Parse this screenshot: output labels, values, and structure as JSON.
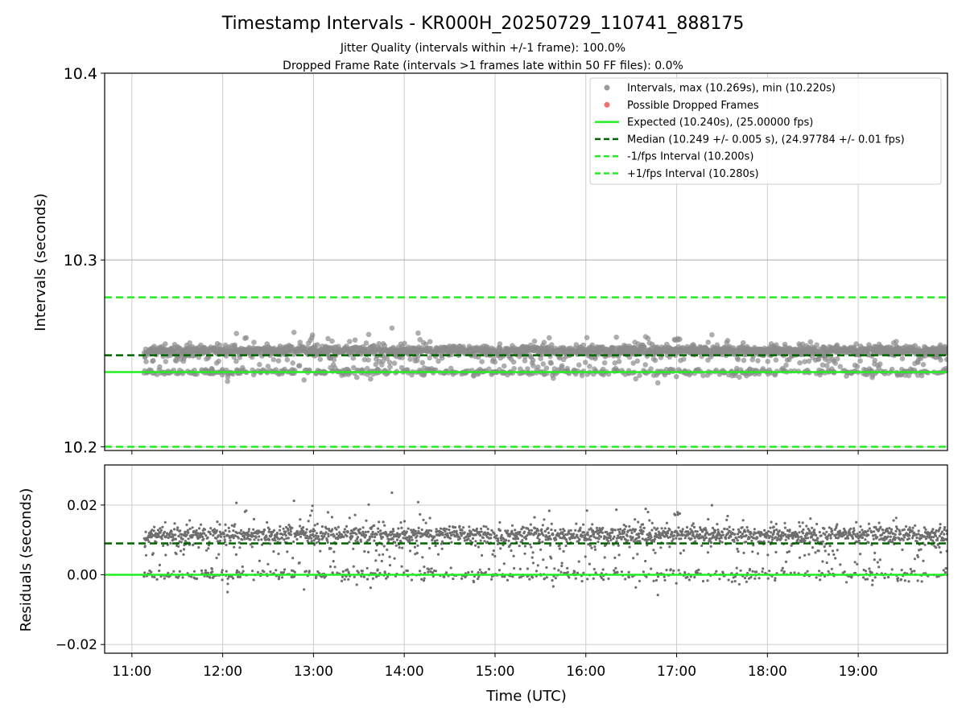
{
  "chart_data": {
    "type": "scatter",
    "title": "Timestamp Intervals - KR000H_20250729_110741_888175",
    "subtitle_lines": [
      "Jitter Quality (intervals within +/-1 frame): 100.0%",
      "Dropped Frame Rate (intervals >1 frames late within 50 FF files): 0.0%"
    ],
    "xlabel": "Time (UTC)",
    "x_ticks": [
      "11:00",
      "12:00",
      "13:00",
      "14:00",
      "15:00",
      "16:00",
      "17:00",
      "18:00",
      "19:00"
    ],
    "x_range": [
      "10:42",
      "19:59"
    ],
    "data_start": "11:08",
    "data_end": "19:59",
    "grid": true,
    "legend_position": "top-right",
    "top_panel": {
      "ylabel": "Intervals (seconds)",
      "ylim": [
        10.198,
        10.4
      ],
      "y_ticks": [
        "10.2",
        "10.3",
        "10.4"
      ],
      "y_tick_values": [
        10.2,
        10.3,
        10.4
      ],
      "interval_max": 10.269,
      "interval_min": 10.22,
      "expected": 10.24,
      "median": 10.249,
      "lower_interval": 10.2,
      "upper_interval": 10.28,
      "dropped_frame_count": 0
    },
    "bottom_panel": {
      "ylabel": "Residuals (seconds)",
      "ylim": [
        -0.0225,
        0.0315
      ],
      "y_ticks": [
        "0.02",
        "0.00",
        "−0.02"
      ],
      "y_tick_values": [
        0.02,
        0.0,
        -0.02
      ],
      "residual_zero": 0.0,
      "residual_median": 0.009
    },
    "legend": [
      {
        "label": "Intervals, max (10.269s), min (10.220s)",
        "marker": "dot",
        "color": "#999999"
      },
      {
        "label": "Possible Dropped Frames",
        "marker": "dot",
        "color": "#f07070"
      },
      {
        "label": "Expected (10.240s), (25.00000 fps)",
        "marker": "line",
        "color": "#22ee22"
      },
      {
        "label": "Median (10.249 +/- 0.005 s), (24.97784 +/- 0.01 fps)",
        "marker": "dash",
        "color": "#006400"
      },
      {
        "label": "-1/fps Interval (10.200s)",
        "marker": "dash",
        "color": "#22ee22"
      },
      {
        "label": "+1/fps Interval (10.280s)",
        "marker": "dash",
        "color": "#22ee22"
      }
    ],
    "colors": {
      "points": "#8c8c8c",
      "residual_points": "#6e6e6e",
      "expected_line": "#22ee22",
      "median_line": "#006400",
      "grid": "#cccccc"
    }
  }
}
